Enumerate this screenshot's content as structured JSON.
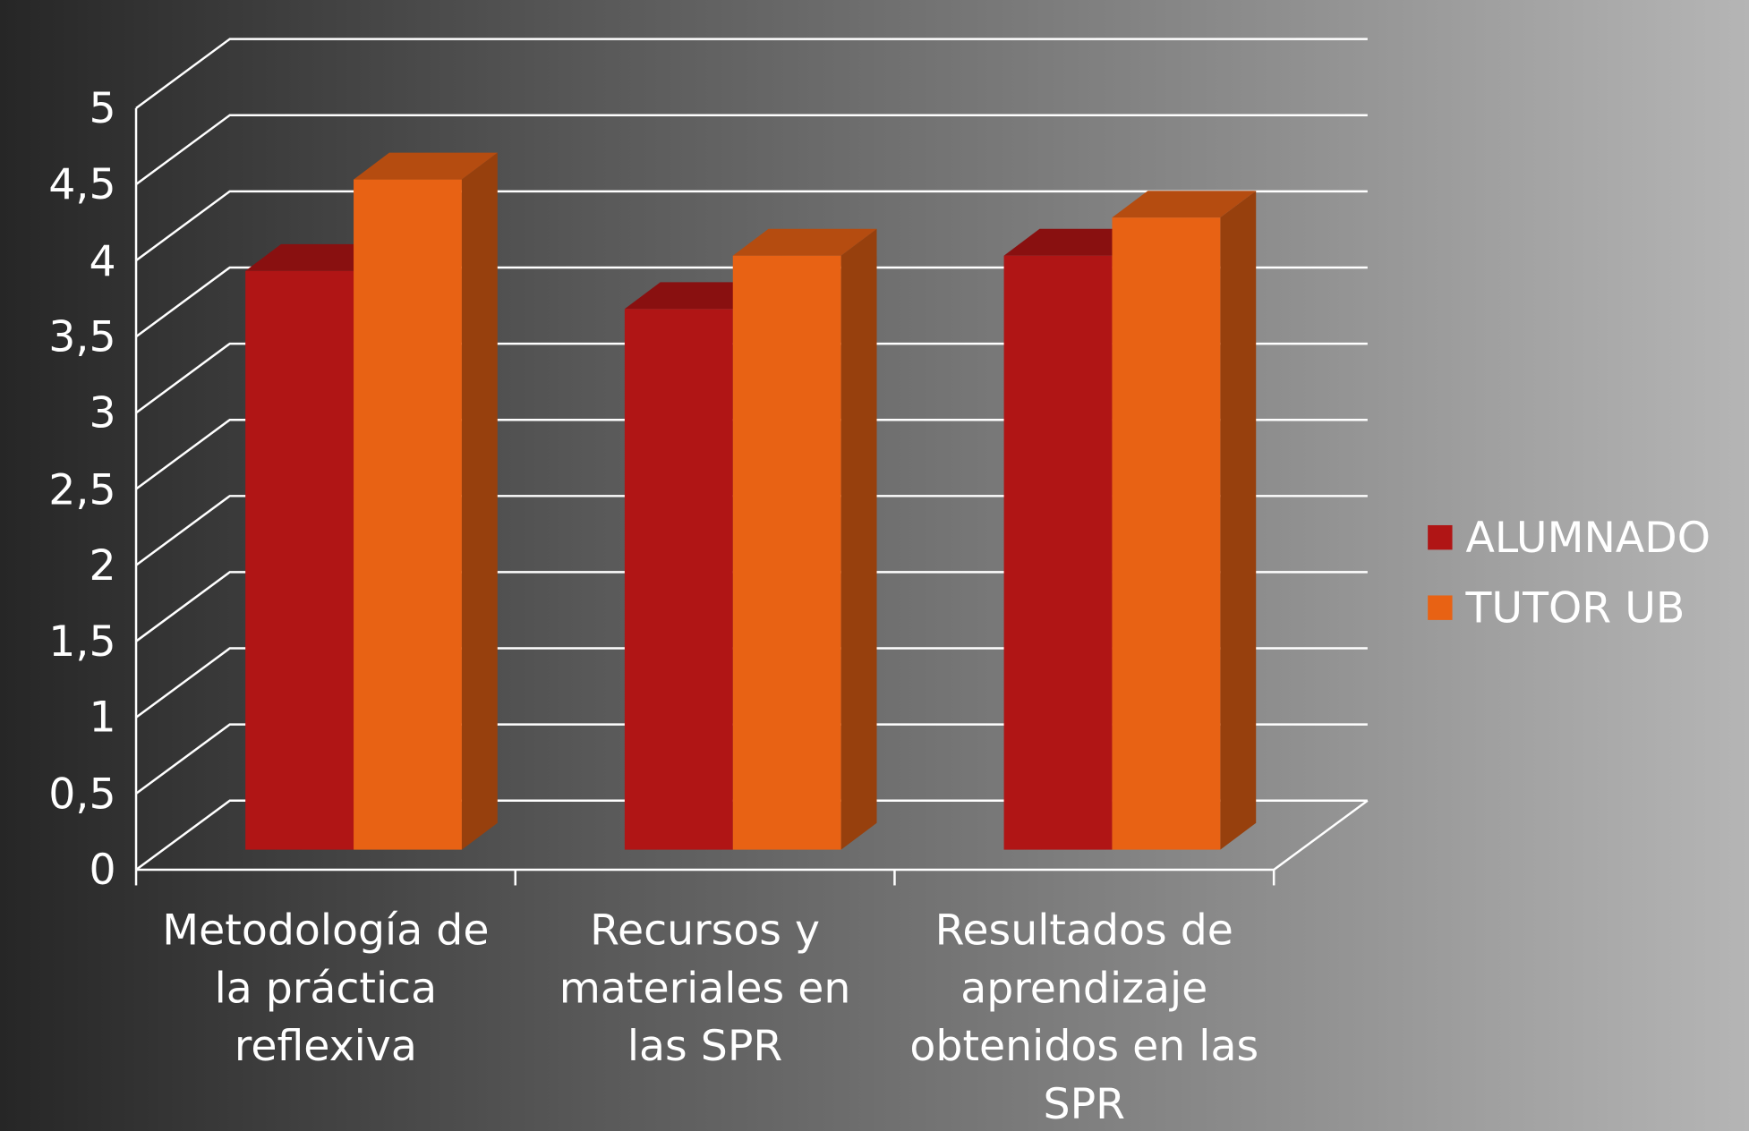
{
  "chart_data": {
    "type": "bar3d",
    "categories": [
      "Metodología de la práctica reflexiva",
      "Recursos y materiales en las SPR",
      "Resultados de aprendizaje obtenidos en las SPR"
    ],
    "series": [
      {
        "name": "ALUMNADO",
        "color": "#b01515",
        "values": [
          3.8,
          3.55,
          3.9
        ]
      },
      {
        "name": "TUTOR UB",
        "color": "#e86214",
        "values": [
          4.4,
          3.9,
          4.15
        ]
      }
    ],
    "ylim": [
      0,
      5
    ],
    "yticks": [
      0,
      {
        "value": 0.5,
        "label": "0,5"
      },
      1,
      {
        "value": 1.5,
        "label": "1,5"
      },
      2,
      {
        "value": 2.5,
        "label": "2,5"
      },
      3,
      {
        "value": 3.5,
        "label": "3,5"
      },
      4,
      {
        "value": 4.5,
        "label": "4,5"
      },
      5
    ],
    "grid": true,
    "legend": "right"
  }
}
